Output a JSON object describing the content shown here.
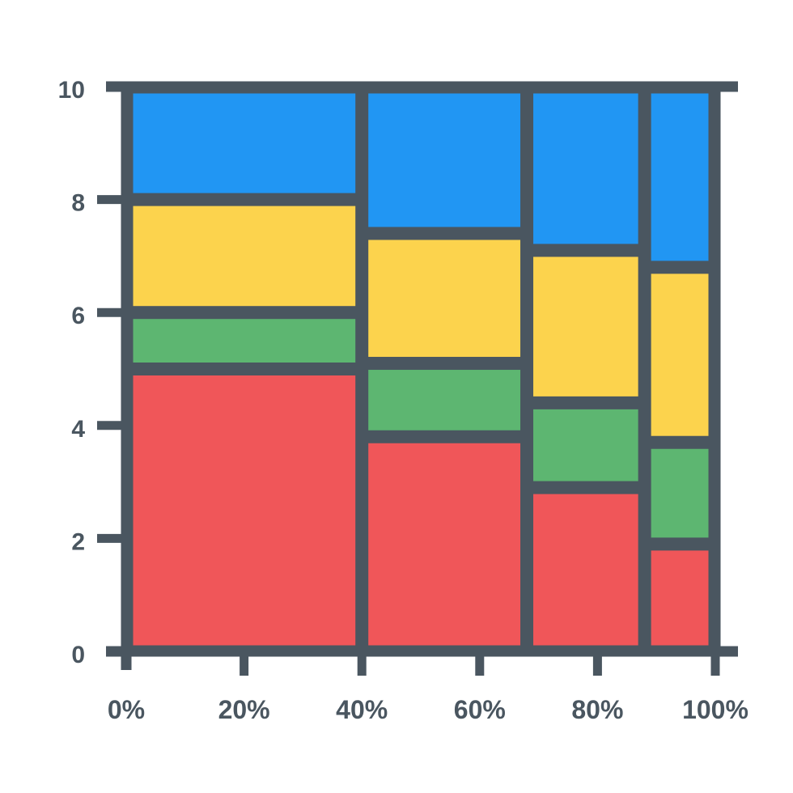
{
  "chart_data": {
    "type": "mosaic",
    "y_ticks": [
      "0",
      "2",
      "4",
      "6",
      "8",
      "10"
    ],
    "x_ticks": [
      "0%",
      "20%",
      "40%",
      "60%",
      "80%",
      "100%"
    ],
    "ylim": [
      0,
      10
    ],
    "xlim": [
      0,
      100
    ],
    "grid": false,
    "columns": [
      {
        "width": 40,
        "segments": [
          5.0,
          1.0,
          2.0,
          1.8
        ]
      },
      {
        "width": 28,
        "segments": [
          3.8,
          1.3,
          2.3,
          2.3
        ]
      },
      {
        "width": 20,
        "segments": [
          2.9,
          1.5,
          2.7,
          2.6
        ]
      },
      {
        "width": 12,
        "segments": [
          1.9,
          1.8,
          3.1,
          2.9
        ]
      }
    ],
    "segment_colors": [
      "#f05659",
      "#5db671",
      "#fcd34d",
      "#2196f3"
    ],
    "frame_color": "#4a5660"
  }
}
